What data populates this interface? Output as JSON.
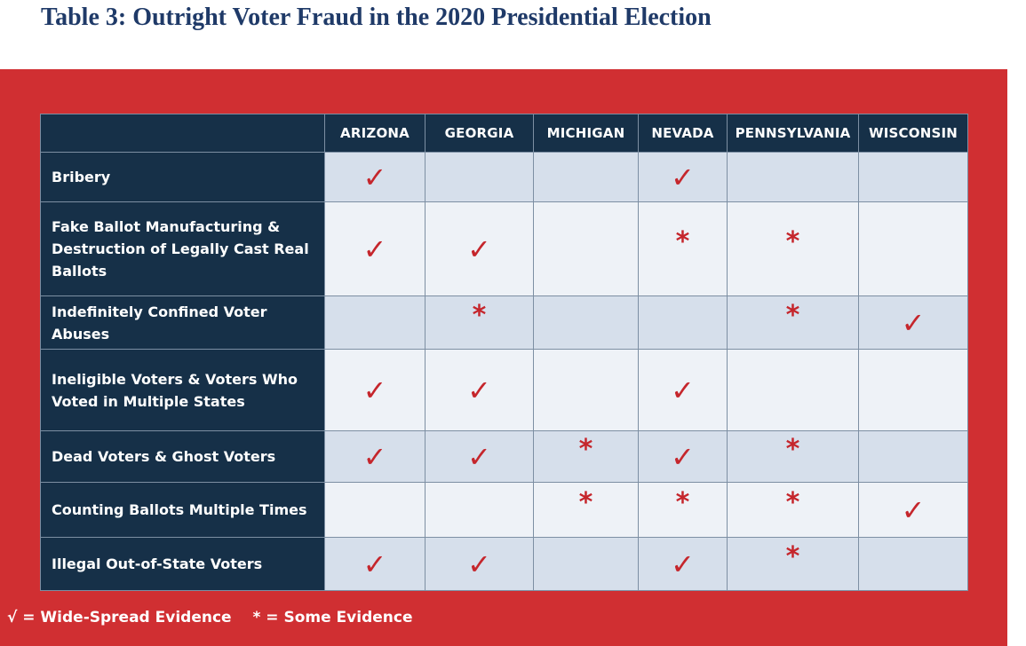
{
  "title": "Table 3: Outright Voter Fraud in the 2020 Presidential Election",
  "states": [
    "ARIZONA",
    "GEORGIA",
    "MICHIGAN",
    "NEVADA",
    "PENNSYLVANIA",
    "WISCONSIN"
  ],
  "rows": [
    {
      "label": "Bribery",
      "marks": [
        "check",
        "",
        "",
        "check",
        "",
        ""
      ]
    },
    {
      "label": "Fake Ballot Manufacturing & Destruction of Legally Cast Real Ballots",
      "marks": [
        "check",
        "check",
        "",
        "star",
        "star",
        ""
      ]
    },
    {
      "label": "Indefinitely Confined Voter Abuses",
      "marks": [
        "",
        "star",
        "",
        "",
        "star",
        "check"
      ]
    },
    {
      "label": "Ineligible Voters & Voters Who Voted in Multiple States",
      "marks": [
        "check",
        "check",
        "",
        "check",
        "",
        ""
      ]
    },
    {
      "label": "Dead Voters & Ghost Voters",
      "marks": [
        "check",
        "check",
        "star",
        "check",
        "star",
        ""
      ]
    },
    {
      "label": "Counting Ballots Multiple Times",
      "marks": [
        "",
        "",
        "star",
        "star",
        "star",
        "check"
      ]
    },
    {
      "label": "Illegal Out-of-State Voters",
      "marks": [
        "check",
        "check",
        "",
        "check",
        "star",
        ""
      ]
    }
  ],
  "symbols": {
    "check": "✓",
    "star": "*"
  },
  "legend": {
    "wide": "√ = Wide-Spread Evidence",
    "some": "* = Some Evidence"
  },
  "colors": {
    "panel": "#d02f32",
    "header": "#163048",
    "mark": "#c5262c",
    "title": "#1f3a68"
  }
}
